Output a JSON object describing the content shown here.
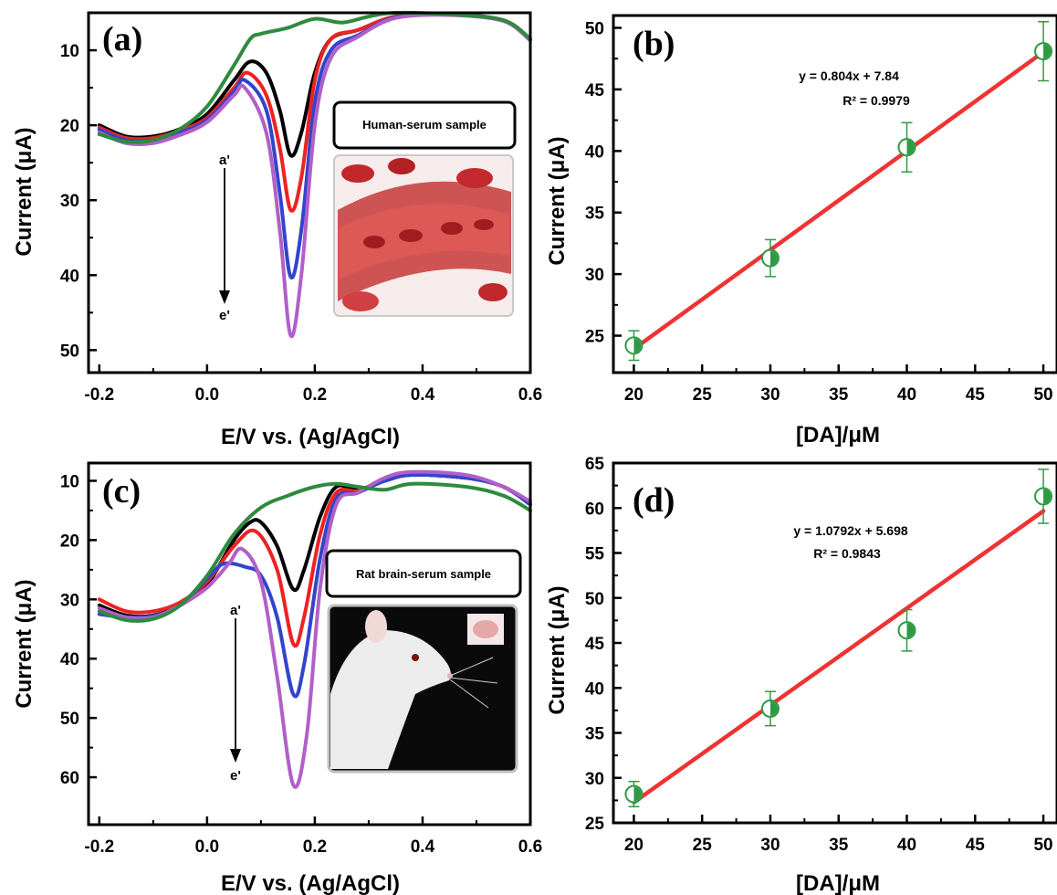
{
  "panels": [
    {
      "id": "a",
      "label": "(a)",
      "kind": "dpv",
      "sample_label": "Human-serum sample",
      "photo_icon": "blood-vessel-illustration",
      "arrow_top": "a'",
      "arrow_bottom": "e'",
      "xlabel": "E/V vs. (Ag/AgCl)",
      "ylabel": "Current (μA)",
      "x_ticks": [
        "-0.2",
        "0.0",
        "0.2",
        "0.4",
        "0.6"
      ],
      "y_ticks": [
        "10",
        "20",
        "30",
        "40",
        "50"
      ]
    },
    {
      "id": "b",
      "label": "(b)",
      "kind": "calib",
      "equation": "y = 0.804x + 7.84",
      "r2": "R² = 0.9979",
      "xlabel": "[DA]/μM",
      "ylabel": "Current (μA)",
      "x_ticks": [
        "20",
        "25",
        "30",
        "35",
        "40",
        "45",
        "50"
      ],
      "y_ticks": [
        "25",
        "30",
        "35",
        "40",
        "45",
        "50"
      ]
    },
    {
      "id": "c",
      "label": "(c)",
      "kind": "dpv",
      "sample_label": "Rat brain-serum sample",
      "photo_icon": "rat-photo",
      "arrow_top": "a'",
      "arrow_bottom": "e'",
      "xlabel": "E/V vs. (Ag/AgCl)",
      "ylabel": "Current (μA)",
      "x_ticks": [
        "-0.2",
        "0.0",
        "0.2",
        "0.4",
        "0.6"
      ],
      "y_ticks": [
        "10",
        "20",
        "30",
        "40",
        "50",
        "60"
      ]
    },
    {
      "id": "d",
      "label": "(d)",
      "kind": "calib",
      "equation": "y = 1.0792x + 5.698",
      "r2": "R² = 0.9843",
      "xlabel": "[DA]/μM",
      "ylabel": "Current (μA)",
      "x_ticks": [
        "20",
        "25",
        "30",
        "35",
        "40",
        "45",
        "50"
      ],
      "y_ticks": [
        "25",
        "30",
        "35",
        "40",
        "45",
        "50",
        "55",
        "60",
        "65"
      ]
    }
  ],
  "chart_data": [
    {
      "type": "line",
      "panel": "a",
      "xlabel": "E/V vs. (Ag/AgCl)",
      "ylabel": "Current (μA)",
      "xlim": [
        -0.22,
        0.6
      ],
      "ylim": [
        5,
        53
      ],
      "y_inverted": true,
      "series": [
        {
          "color": "#000000",
          "points": [
            [
              -0.2,
              20
            ],
            [
              -0.15,
              21.5
            ],
            [
              -0.1,
              21.5
            ],
            [
              -0.05,
              20.5
            ],
            [
              0,
              18.5
            ],
            [
              0.05,
              14
            ],
            [
              0.08,
              11.5
            ],
            [
              0.11,
              13
            ],
            [
              0.135,
              18
            ],
            [
              0.155,
              24
            ],
            [
              0.175,
              21
            ],
            [
              0.2,
              13
            ],
            [
              0.23,
              8.5
            ],
            [
              0.28,
              7.3
            ],
            [
              0.35,
              5.5
            ],
            [
              0.45,
              5.2
            ],
            [
              0.55,
              6
            ],
            [
              0.6,
              8.5
            ]
          ]
        },
        {
          "color": "#ee2222",
          "points": [
            [
              -0.2,
              20.3
            ],
            [
              -0.15,
              21.7
            ],
            [
              -0.1,
              21.7
            ],
            [
              -0.05,
              20.7
            ],
            [
              0,
              19
            ],
            [
              0.05,
              15
            ],
            [
              0.075,
              13
            ],
            [
              0.11,
              16
            ],
            [
              0.135,
              23
            ],
            [
              0.155,
              31.3
            ],
            [
              0.175,
              27
            ],
            [
              0.2,
              14
            ],
            [
              0.23,
              8.5
            ],
            [
              0.28,
              7.3
            ],
            [
              0.35,
              5.5
            ],
            [
              0.45,
              5.2
            ],
            [
              0.55,
              6
            ],
            [
              0.6,
              8.5
            ]
          ]
        },
        {
          "color": "#3344cc",
          "points": [
            [
              -0.2,
              20.6
            ],
            [
              -0.15,
              22
            ],
            [
              -0.1,
              22
            ],
            [
              -0.05,
              21
            ],
            [
              0,
              19.3
            ],
            [
              0.05,
              15.5
            ],
            [
              0.07,
              14
            ],
            [
              0.11,
              18
            ],
            [
              0.135,
              29
            ],
            [
              0.155,
              40.2
            ],
            [
              0.175,
              34
            ],
            [
              0.2,
              17
            ],
            [
              0.23,
              10
            ],
            [
              0.28,
              8
            ],
            [
              0.35,
              5.6
            ],
            [
              0.45,
              5.2
            ],
            [
              0.55,
              6
            ],
            [
              0.6,
              8.5
            ]
          ]
        },
        {
          "color": "#b060c8",
          "points": [
            [
              -0.2,
              21
            ],
            [
              -0.15,
              22.4
            ],
            [
              -0.1,
              22.4
            ],
            [
              -0.05,
              21.3
            ],
            [
              0,
              19.6
            ],
            [
              0.05,
              16
            ],
            [
              0.07,
              15
            ],
            [
              0.11,
              21
            ],
            [
              0.135,
              34
            ],
            [
              0.155,
              48
            ],
            [
              0.175,
              40
            ],
            [
              0.2,
              20
            ],
            [
              0.23,
              11
            ],
            [
              0.28,
              8.2
            ],
            [
              0.35,
              5.7
            ],
            [
              0.45,
              5.3
            ],
            [
              0.55,
              6.1
            ],
            [
              0.6,
              8.7
            ]
          ]
        },
        {
          "color": "#2e8b3e",
          "points": [
            [
              -0.2,
              21.2
            ],
            [
              -0.15,
              22.2
            ],
            [
              -0.1,
              22
            ],
            [
              -0.05,
              20.5
            ],
            [
              0,
              17.5
            ],
            [
              0.05,
              12
            ],
            [
              0.08,
              8.5
            ],
            [
              0.1,
              7.8
            ],
            [
              0.15,
              7
            ],
            [
              0.2,
              5.8
            ],
            [
              0.25,
              6.3
            ],
            [
              0.3,
              5.5
            ],
            [
              0.35,
              5
            ],
            [
              0.45,
              5.2
            ],
            [
              0.55,
              6
            ],
            [
              0.6,
              8.5
            ]
          ]
        }
      ]
    },
    {
      "type": "scatter",
      "panel": "b",
      "xlabel": "[DA]/μM",
      "ylabel": "Current (μA)",
      "xlim": [
        18.5,
        51
      ],
      "ylim": [
        22,
        51
      ],
      "x": [
        20,
        30,
        40,
        50
      ],
      "y": [
        24.2,
        31.3,
        40.3,
        48.1
      ],
      "error": [
        1.2,
        1.5,
        2.0,
        2.4
      ],
      "fit": {
        "slope": 0.804,
        "intercept": 7.84,
        "color": "#ee3333"
      },
      "marker_color": "#2e9a44"
    },
    {
      "type": "line",
      "panel": "c",
      "xlabel": "E/V vs. (Ag/AgCl)",
      "ylabel": "Current (μA)",
      "xlim": [
        -0.22,
        0.6
      ],
      "ylim": [
        7,
        68
      ],
      "y_inverted": true,
      "series": [
        {
          "color": "#000000",
          "points": [
            [
              -0.2,
              31
            ],
            [
              -0.15,
              32.7
            ],
            [
              -0.1,
              32.7
            ],
            [
              -0.05,
              31
            ],
            [
              0,
              27.5
            ],
            [
              0.05,
              20
            ],
            [
              0.08,
              17
            ],
            [
              0.1,
              17
            ],
            [
              0.13,
              21
            ],
            [
              0.16,
              28.3
            ],
            [
              0.18,
              25
            ],
            [
              0.21,
              16
            ],
            [
              0.24,
              11
            ],
            [
              0.28,
              11.5
            ],
            [
              0.33,
              10
            ],
            [
              0.38,
              9
            ],
            [
              0.48,
              9.5
            ],
            [
              0.55,
              11
            ],
            [
              0.6,
              14
            ]
          ]
        },
        {
          "color": "#ee2222",
          "points": [
            [
              -0.2,
              30
            ],
            [
              -0.15,
              32
            ],
            [
              -0.1,
              32
            ],
            [
              -0.05,
              30.5
            ],
            [
              0,
              27
            ],
            [
              0.05,
              21
            ],
            [
              0.09,
              18.5
            ],
            [
              0.13,
              25
            ],
            [
              0.16,
              37.5
            ],
            [
              0.18,
              33
            ],
            [
              0.21,
              19
            ],
            [
              0.24,
              12
            ],
            [
              0.28,
              11.7
            ],
            [
              0.33,
              10
            ],
            [
              0.38,
              9
            ],
            [
              0.48,
              9.5
            ],
            [
              0.55,
              11
            ],
            [
              0.6,
              14
            ]
          ]
        },
        {
          "color": "#3344cc",
          "points": [
            [
              -0.2,
              32.5
            ],
            [
              -0.15,
              33
            ],
            [
              -0.1,
              32.8
            ],
            [
              -0.05,
              31
            ],
            [
              0,
              26.5
            ],
            [
              0.03,
              24
            ],
            [
              0.07,
              24.5
            ],
            [
              0.1,
              26
            ],
            [
              0.13,
              33
            ],
            [
              0.16,
              46
            ],
            [
              0.18,
              41
            ],
            [
              0.21,
              23
            ],
            [
              0.24,
              13
            ],
            [
              0.28,
              12
            ],
            [
              0.33,
              10
            ],
            [
              0.38,
              9
            ],
            [
              0.48,
              9.5
            ],
            [
              0.55,
              11
            ],
            [
              0.6,
              14
            ]
          ]
        },
        {
          "color": "#b060c8",
          "points": [
            [
              -0.2,
              31.5
            ],
            [
              -0.15,
              33
            ],
            [
              -0.1,
              33
            ],
            [
              -0.05,
              31
            ],
            [
              0,
              28
            ],
            [
              0.04,
              24
            ],
            [
              0.065,
              21.5
            ],
            [
              0.1,
              27
            ],
            [
              0.13,
              43
            ],
            [
              0.16,
              61.3
            ],
            [
              0.185,
              53
            ],
            [
              0.21,
              28
            ],
            [
              0.24,
              14
            ],
            [
              0.28,
              12
            ],
            [
              0.33,
              9.5
            ],
            [
              0.38,
              8.5
            ],
            [
              0.48,
              9
            ],
            [
              0.55,
              11
            ],
            [
              0.6,
              13.5
            ]
          ]
        },
        {
          "color": "#2e8b3e",
          "points": [
            [
              -0.2,
              32
            ],
            [
              -0.15,
              33.5
            ],
            [
              -0.1,
              33.3
            ],
            [
              -0.05,
              31
            ],
            [
              0,
              26
            ],
            [
              0.05,
              19
            ],
            [
              0.1,
              14.5
            ],
            [
              0.15,
              12.5
            ],
            [
              0.2,
              11
            ],
            [
              0.24,
              10.5
            ],
            [
              0.28,
              11
            ],
            [
              0.33,
              11.5
            ],
            [
              0.38,
              10.5
            ],
            [
              0.48,
              11
            ],
            [
              0.55,
              12.5
            ],
            [
              0.6,
              15
            ]
          ]
        }
      ]
    },
    {
      "type": "scatter",
      "panel": "d",
      "xlabel": "[DA]/μM",
      "ylabel": "Current (μA)",
      "xlim": [
        18.5,
        51
      ],
      "ylim": [
        25,
        65
      ],
      "x": [
        20,
        30,
        40,
        50
      ],
      "y": [
        28.2,
        37.7,
        46.4,
        61.3
      ],
      "error": [
        1.4,
        1.9,
        2.3,
        3.0
      ],
      "fit": {
        "slope": 1.0792,
        "intercept": 5.698,
        "color": "#ee3333"
      },
      "marker_color": "#2e9a44"
    }
  ]
}
